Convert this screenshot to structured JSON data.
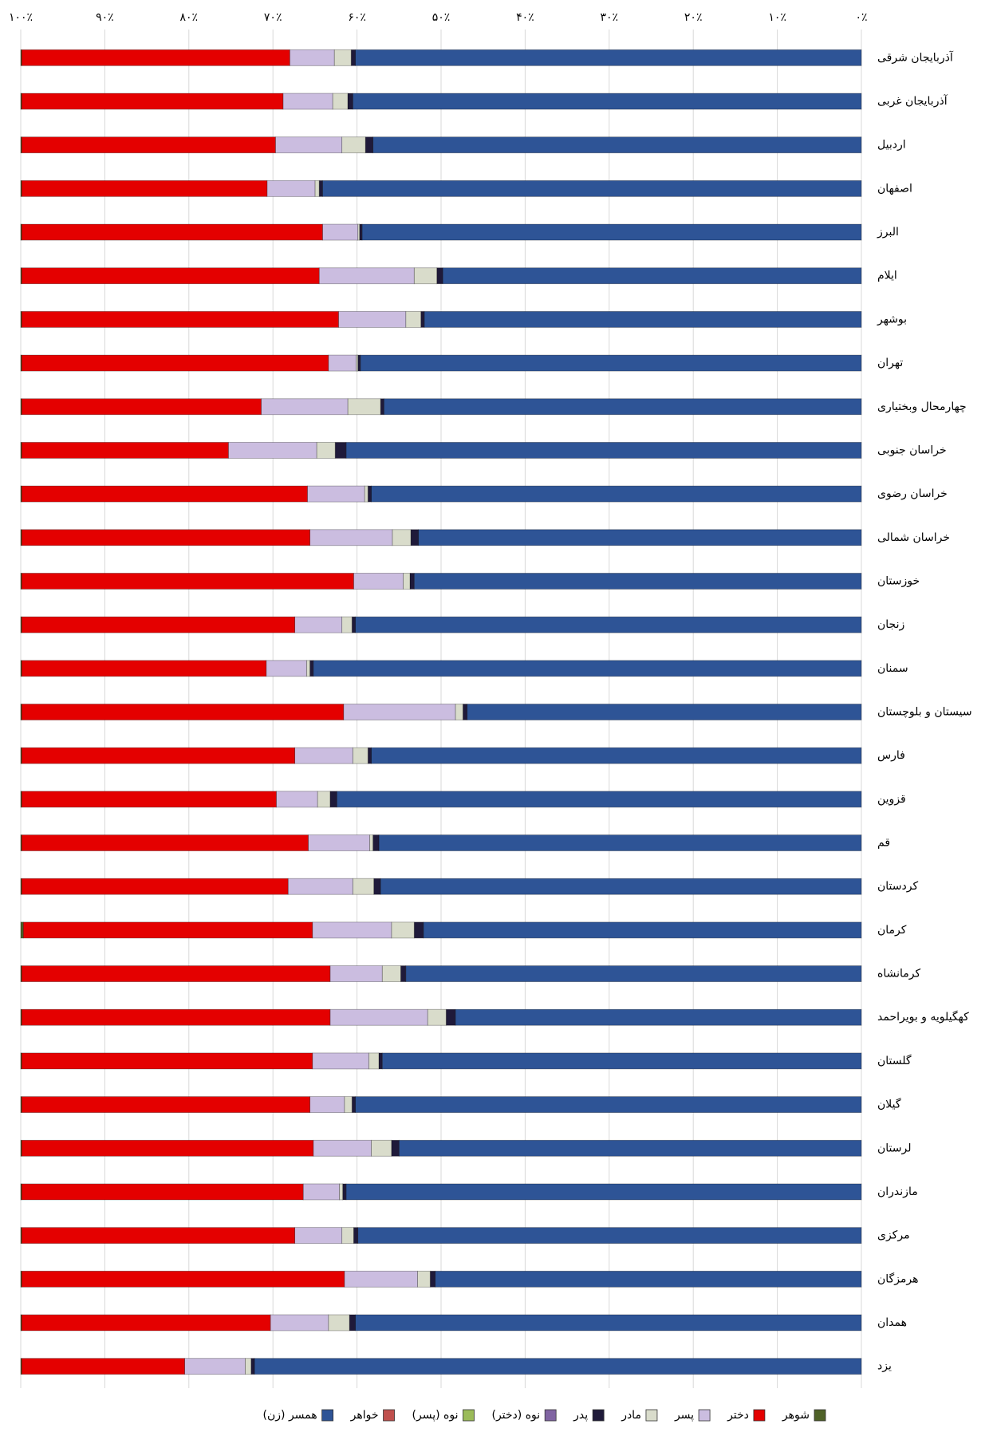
{
  "chart_data": {
    "type": "stacked_barh",
    "categories": [
      "آذربایجان شرقی",
      "آذربایجان غربی",
      "اردبیل",
      "اصفهان",
      "البرز",
      "ایلام",
      "بوشهر",
      "تهران",
      "چهارمحال وبختیاری",
      "خراسان جنوبی",
      "خراسان رضوی",
      "خراسان شمالی",
      "خوزستان",
      "زنجان",
      "سمنان",
      "سیستان  و بلوچستان",
      "فارس",
      "قزوین",
      "قم",
      "کردستان",
      "کرمان",
      "کرمانشاه",
      "کهگیلویه و بویراحمد",
      "گلستان",
      "گیلان",
      "لرستان",
      "مازندران",
      "مرکزی",
      "هرمزگان",
      "همدان",
      "یزد"
    ],
    "series": [
      {
        "name": "همسر (زن)",
        "color": "#2e5496",
        "values": [
          60.2,
          60.5,
          58.1,
          64.1,
          59.4,
          49.8,
          52.0,
          59.6,
          56.8,
          61.3,
          58.3,
          52.7,
          53.2,
          60.2,
          65.2,
          46.9,
          58.3,
          62.4,
          57.4,
          57.2,
          52.1,
          54.2,
          48.3,
          57.0,
          60.2,
          55.0,
          61.3,
          59.9,
          50.7,
          60.2,
          72.2
        ]
      },
      {
        "name": "خواهر",
        "color": "#c0504d",
        "values": [
          0,
          0,
          0,
          0,
          0,
          0,
          0,
          0,
          0,
          0,
          0,
          0,
          0,
          0,
          0,
          0,
          0,
          0,
          0,
          0,
          0,
          0,
          0,
          0,
          0,
          0,
          0,
          0,
          0,
          0,
          0
        ]
      },
      {
        "name": "نوه (پسر)",
        "color": "#9bbb59",
        "values": [
          0,
          0,
          0,
          0,
          0,
          0,
          0,
          0,
          0,
          0,
          0,
          0,
          0,
          0,
          0,
          0,
          0,
          0,
          0,
          0,
          0,
          0,
          0,
          0,
          0,
          0,
          0,
          0,
          0,
          0,
          0
        ]
      },
      {
        "name": "نوه (دختر)",
        "color": "#8064a2",
        "values": [
          0,
          0,
          0,
          0,
          0,
          0,
          0,
          0,
          0,
          0,
          0,
          0,
          0,
          0,
          0,
          0,
          0,
          0,
          0,
          0,
          0,
          0,
          0,
          0,
          0,
          0,
          0,
          0,
          0,
          0,
          0
        ]
      },
      {
        "name": "پدر",
        "color": "#1f1a3a",
        "values": [
          0.5,
          0.6,
          0.9,
          0.4,
          0.3,
          0.7,
          0.4,
          0.3,
          0.4,
          1.3,
          0.4,
          0.9,
          0.5,
          0.4,
          0.4,
          0.5,
          0.4,
          0.8,
          0.7,
          0.8,
          1.1,
          0.6,
          1.1,
          0.4,
          0.4,
          0.9,
          0.4,
          0.5,
          0.6,
          0.7,
          0.4
        ]
      },
      {
        "name": "مادر",
        "color": "#d9dccb",
        "values": [
          2.0,
          1.8,
          2.8,
          0.5,
          0.2,
          2.7,
          1.8,
          0.2,
          3.9,
          2.2,
          0.4,
          2.2,
          0.8,
          1.2,
          0.4,
          0.9,
          1.8,
          1.5,
          0.4,
          2.5,
          2.7,
          2.2,
          2.2,
          1.2,
          0.9,
          2.4,
          0.4,
          1.4,
          1.5,
          2.5,
          0.7
        ]
      },
      {
        "name": "پسر",
        "color": "#cbbde0",
        "values": [
          5.3,
          5.9,
          7.9,
          5.7,
          4.2,
          11.3,
          8.0,
          3.3,
          10.3,
          10.5,
          6.8,
          9.8,
          5.9,
          5.6,
          4.8,
          13.3,
          6.9,
          4.9,
          7.3,
          7.7,
          9.4,
          6.2,
          11.6,
          6.7,
          4.1,
          6.9,
          4.3,
          5.6,
          8.7,
          6.9,
          7.2
        ]
      },
      {
        "name": "دختر",
        "color": "#e40000",
        "values": [
          31.9,
          31.1,
          30.2,
          29.2,
          35.8,
          35.4,
          37.7,
          36.5,
          28.5,
          24.6,
          34.0,
          34.3,
          39.5,
          32.5,
          29.1,
          38.3,
          32.5,
          30.3,
          34.1,
          31.7,
          34.4,
          36.7,
          36.7,
          34.6,
          34.3,
          34.7,
          33.5,
          32.5,
          38.4,
          29.6,
          19.4
        ]
      },
      {
        "name": "شوهر",
        "color": "#4f6228",
        "values": [
          0.1,
          0.1,
          0.1,
          0.1,
          0.1,
          0.1,
          0.1,
          0.1,
          0.1,
          0.1,
          0.1,
          0.1,
          0.1,
          0.1,
          0.1,
          0.1,
          0.1,
          0.1,
          0.1,
          0.1,
          0.3,
          0.1,
          0.1,
          0.1,
          0.1,
          0.1,
          0.1,
          0.1,
          0.1,
          0.1,
          0.1
        ]
      }
    ],
    "xlim": [
      0,
      100
    ],
    "xticks": [
      {
        "value": 0,
        "label": "۰٪"
      },
      {
        "value": 10,
        "label": "۱۰٪"
      },
      {
        "value": 20,
        "label": "۲۰٪"
      },
      {
        "value": 30,
        "label": "۳۰٪"
      },
      {
        "value": 40,
        "label": "۴۰٪"
      },
      {
        "value": 50,
        "label": "۵۰٪"
      },
      {
        "value": 60,
        "label": "۶۰٪"
      },
      {
        "value": 70,
        "label": "۷۰٪"
      },
      {
        "value": 80,
        "label": "۸۰٪"
      },
      {
        "value": 90,
        "label": "۹۰٪"
      },
      {
        "value": 100,
        "label": "۱۰۰٪"
      }
    ],
    "x_reversed": true,
    "grid": true,
    "legend": "bottom"
  }
}
